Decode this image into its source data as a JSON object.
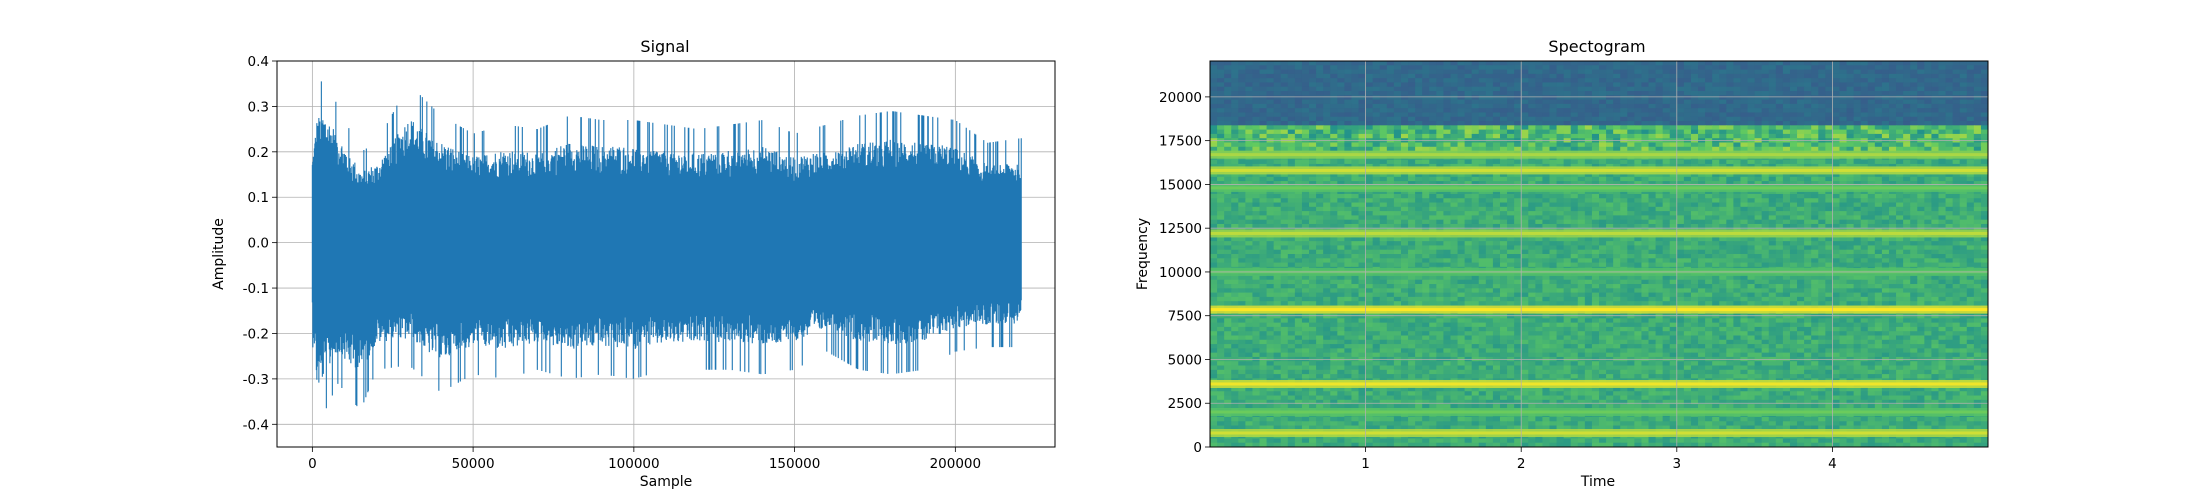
{
  "chart_data": [
    {
      "type": "line",
      "title": "Signal",
      "xlabel": "Sample",
      "ylabel": "Amplitude",
      "xlim": [
        -11000,
        231000
      ],
      "ylim": [
        -0.45,
        0.4
      ],
      "x_ticks": [
        0,
        50000,
        100000,
        150000,
        200000
      ],
      "y_ticks": [
        -0.4,
        -0.3,
        -0.2,
        -0.1,
        0.0,
        0.1,
        0.2,
        0.3,
        0.4
      ],
      "grid": true,
      "series": [
        {
          "color": "#1f77b4",
          "x_range": [
            0,
            220500
          ],
          "envelope": [
            {
              "x": 0,
              "upper": 0.24,
              "lower": -0.21
            },
            {
              "x": 1500,
              "upper": 0.35,
              "lower": -0.41
            },
            {
              "x": 4000,
              "upper": 0.36,
              "lower": -0.37
            },
            {
              "x": 8000,
              "upper": 0.3,
              "lower": -0.31
            },
            {
              "x": 15000,
              "upper": 0.2,
              "lower": -0.37
            },
            {
              "x": 20000,
              "upper": 0.22,
              "lower": -0.28
            },
            {
              "x": 30000,
              "upper": 0.35,
              "lower": -0.27
            },
            {
              "x": 40000,
              "upper": 0.28,
              "lower": -0.33
            },
            {
              "x": 50000,
              "upper": 0.24,
              "lower": -0.29
            },
            {
              "x": 60000,
              "upper": 0.26,
              "lower": -0.3
            },
            {
              "x": 70000,
              "upper": 0.25,
              "lower": -0.28
            },
            {
              "x": 80000,
              "upper": 0.28,
              "lower": -0.3
            },
            {
              "x": 90000,
              "upper": 0.27,
              "lower": -0.29
            },
            {
              "x": 100000,
              "upper": 0.27,
              "lower": -0.3
            },
            {
              "x": 110000,
              "upper": 0.26,
              "lower": -0.28
            },
            {
              "x": 120000,
              "upper": 0.25,
              "lower": -0.28
            },
            {
              "x": 130000,
              "upper": 0.26,
              "lower": -0.28
            },
            {
              "x": 140000,
              "upper": 0.27,
              "lower": -0.29
            },
            {
              "x": 150000,
              "upper": 0.24,
              "lower": -0.28
            },
            {
              "x": 160000,
              "upper": 0.26,
              "lower": -0.24
            },
            {
              "x": 170000,
              "upper": 0.28,
              "lower": -0.28
            },
            {
              "x": 180000,
              "upper": 0.29,
              "lower": -0.29
            },
            {
              "x": 190000,
              "upper": 0.28,
              "lower": -0.28
            },
            {
              "x": 200000,
              "upper": 0.27,
              "lower": -0.24
            },
            {
              "x": 210000,
              "upper": 0.22,
              "lower": -0.23
            },
            {
              "x": 220500,
              "upper": 0.23,
              "lower": -0.23
            }
          ]
        }
      ]
    },
    {
      "type": "heatmap",
      "title": "Spectogram",
      "xlabel": "Time",
      "ylabel": "Frequency",
      "xlim": [
        0,
        5.0
      ],
      "ylim": [
        0,
        22050
      ],
      "x_ticks": [
        1,
        2,
        3,
        4
      ],
      "y_ticks": [
        0,
        2500,
        5000,
        7500,
        10000,
        12500,
        15000,
        17500,
        20000
      ],
      "grid": true,
      "colormap": [
        "#440154",
        "#3b528b",
        "#21918c",
        "#5ec962",
        "#fde725"
      ],
      "background_intensity": 0.62,
      "high_frequency_cutoff": 18300,
      "above_cutoff_intensity": 0.34,
      "harmonic_bands": [
        {
          "frequency": 800,
          "intensity": 0.88
        },
        {
          "frequency": 2000,
          "intensity": 0.72
        },
        {
          "frequency": 3600,
          "intensity": 0.93
        },
        {
          "frequency": 7850,
          "intensity": 0.95
        },
        {
          "frequency": 10000,
          "intensity": 0.7
        },
        {
          "frequency": 12200,
          "intensity": 0.85
        },
        {
          "frequency": 14800,
          "intensity": 0.72
        },
        {
          "frequency": 15800,
          "intensity": 0.88
        },
        {
          "frequency": 16700,
          "intensity": 0.82
        }
      ]
    }
  ]
}
